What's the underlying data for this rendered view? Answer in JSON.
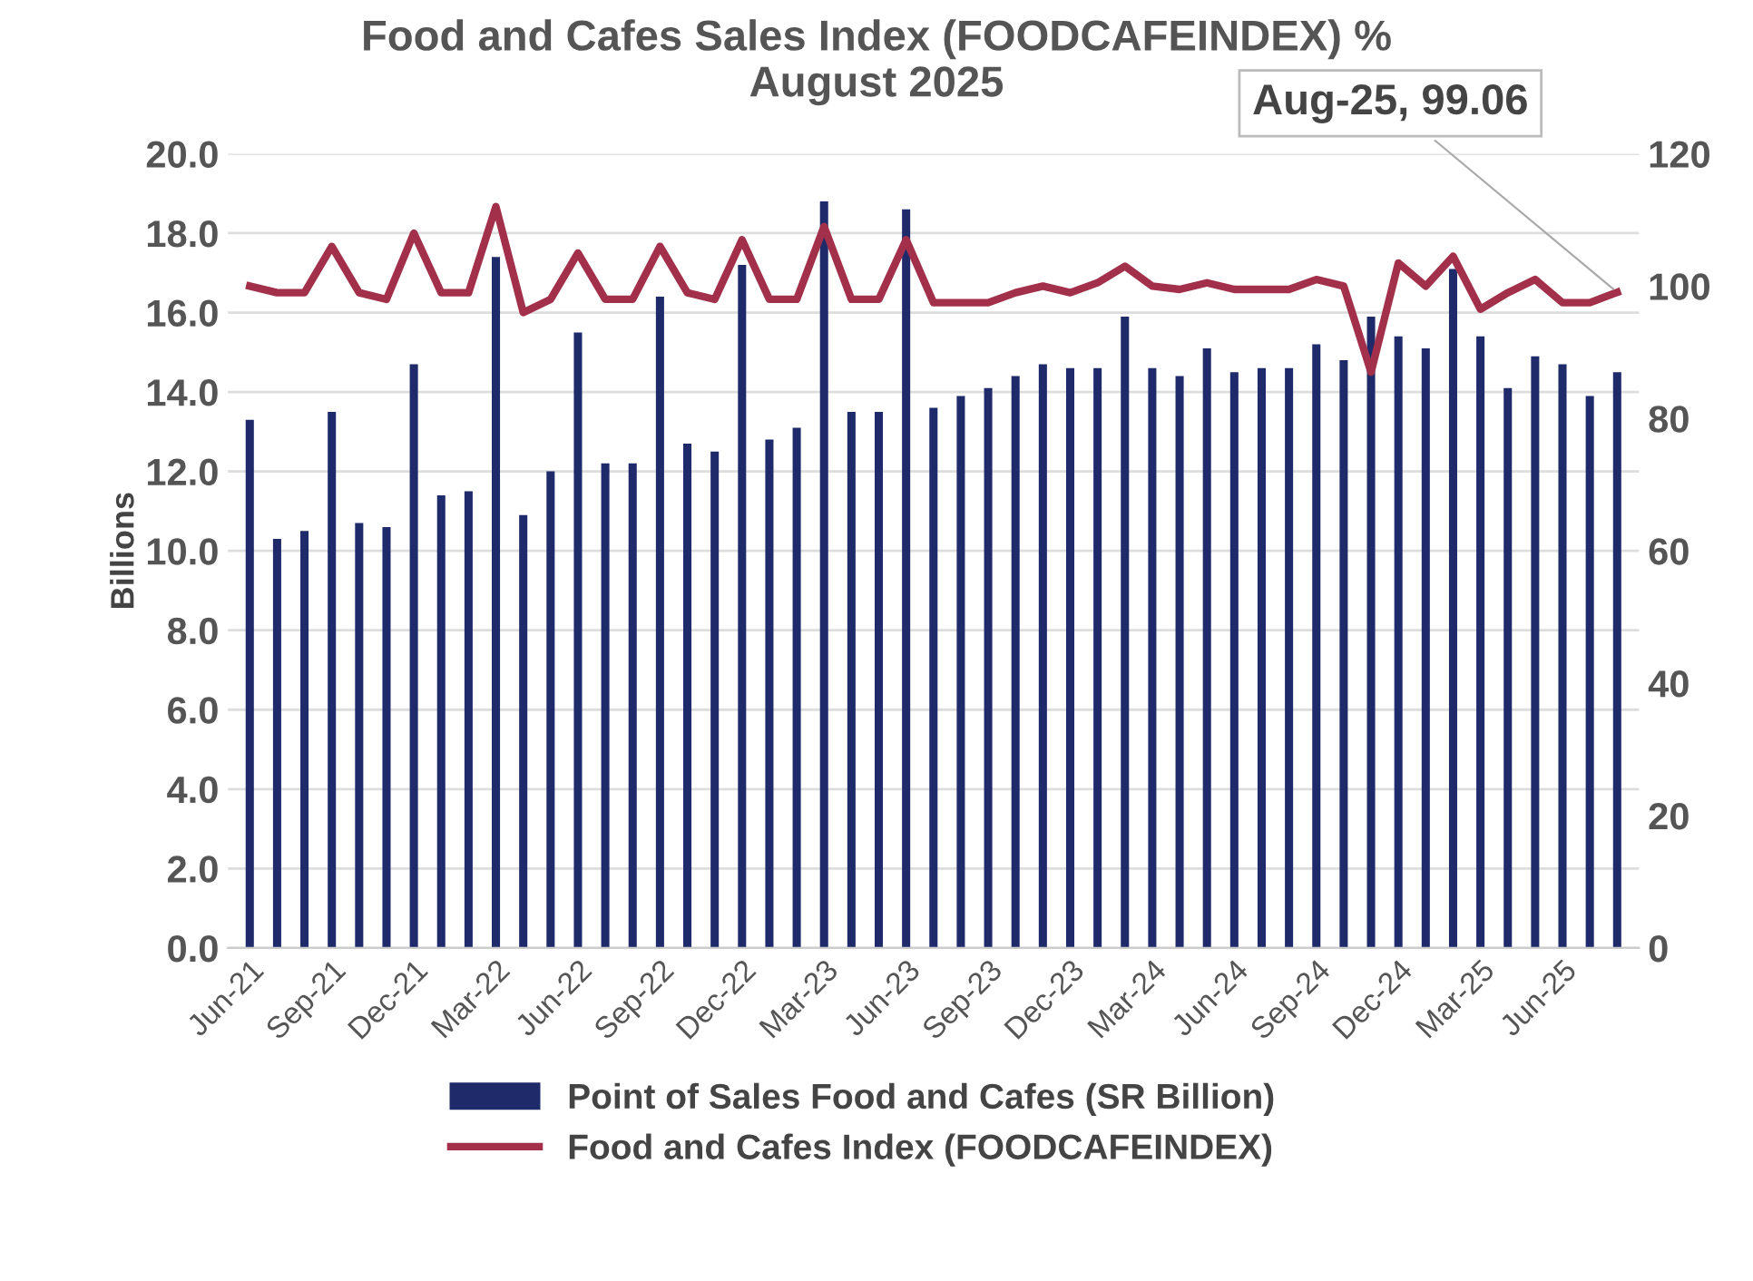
{
  "chart_data": {
    "type": "bar",
    "title": "Food and Cafes Sales Index (FOODCAFEINDEX) %\nAugust 2025",
    "ylabel": "Billions",
    "categories": [
      "Jun-21",
      null,
      null,
      "Sep-21",
      null,
      null,
      "Dec-21",
      null,
      null,
      "Mar-22",
      null,
      null,
      "Jun-22",
      null,
      null,
      "Sep-22",
      null,
      null,
      "Dec-22",
      null,
      null,
      "Mar-23",
      null,
      null,
      "Jun-23",
      null,
      null,
      "Sep-23",
      null,
      null,
      "Dec-23",
      null,
      null,
      "Mar-24",
      null,
      null,
      "Jun-24",
      null,
      null,
      "Sep-24",
      null,
      null,
      "Dec-24",
      null,
      null,
      "Mar-25",
      null,
      null,
      "Jun-25",
      null,
      null
    ],
    "series": [
      {
        "name": "Point of Sales Food and Cafes (SR Billion)",
        "color": "#1f2a6b",
        "values": [
          13.3,
          10.3,
          10.5,
          13.5,
          10.7,
          10.6,
          14.7,
          11.4,
          11.5,
          17.4,
          10.9,
          12.0,
          15.5,
          12.2,
          12.2,
          16.4,
          12.7,
          12.5,
          17.2,
          12.8,
          13.1,
          18.8,
          13.5,
          13.5,
          18.6,
          13.6,
          13.9,
          14.1,
          14.4,
          14.7,
          14.6,
          14.6,
          15.9,
          14.6,
          14.4,
          15.1,
          14.5,
          14.6,
          14.6,
          15.2,
          14.8,
          15.9,
          15.4,
          15.1,
          17.1,
          15.4,
          14.1,
          14.9,
          14.7,
          13.9,
          14.5
        ]
      },
      {
        "name": "Food and Cafes Index (FOODCAFEINDEX)",
        "type": "line",
        "axis": "y2",
        "color": "#a3304a",
        "values": [
          100,
          99,
          99,
          106,
          99,
          98,
          108,
          99,
          99,
          112,
          96,
          98,
          105,
          98,
          98,
          106,
          99,
          98,
          107,
          98,
          98,
          109,
          98,
          98,
          107,
          97.5,
          97.5,
          97.5,
          99,
          100,
          99,
          100.5,
          103,
          100,
          99.5,
          100.5,
          99.5,
          99.5,
          99.5,
          101,
          100,
          87,
          103.5,
          100,
          104.5,
          96.5,
          99,
          101,
          97.5,
          97.5,
          99.06
        ],
        "value_labels": [
          null,
          null,
          null,
          null,
          null,
          null,
          null,
          null,
          null,
          null,
          null,
          null,
          null,
          null,
          null,
          null,
          null,
          null,
          null,
          null,
          null,
          null,
          null,
          null,
          null,
          null,
          null,
          null,
          null,
          null,
          null,
          null,
          null,
          null,
          null,
          null,
          null,
          null,
          null,
          null,
          null,
          null,
          null,
          null,
          null,
          null,
          null,
          null,
          null,
          null,
          "Aug-25, 99.06"
        ]
      }
    ],
    "ylim": [
      0,
      20
    ],
    "yticks": [
      {
        "value": 0,
        "label": "0.0"
      },
      {
        "value": 2,
        "label": "2.0"
      },
      {
        "value": 4,
        "label": "4.0"
      },
      {
        "value": 6,
        "label": "6.0"
      },
      {
        "value": 8,
        "label": "8.0"
      },
      {
        "value": 10,
        "label": "10.0"
      },
      {
        "value": 12,
        "label": "12.0"
      },
      {
        "value": 14,
        "label": "14.0"
      },
      {
        "value": 16,
        "label": "16.0"
      },
      {
        "value": 18,
        "label": "18.0"
      },
      {
        "value": 20,
        "label": "20.0"
      }
    ],
    "y2lim": [
      0,
      120
    ],
    "y2ticks": [
      0,
      20,
      40,
      60,
      80,
      100,
      120
    ],
    "grid": "y",
    "legend": "bottom",
    "marker": "none",
    "line_style": "solid"
  }
}
